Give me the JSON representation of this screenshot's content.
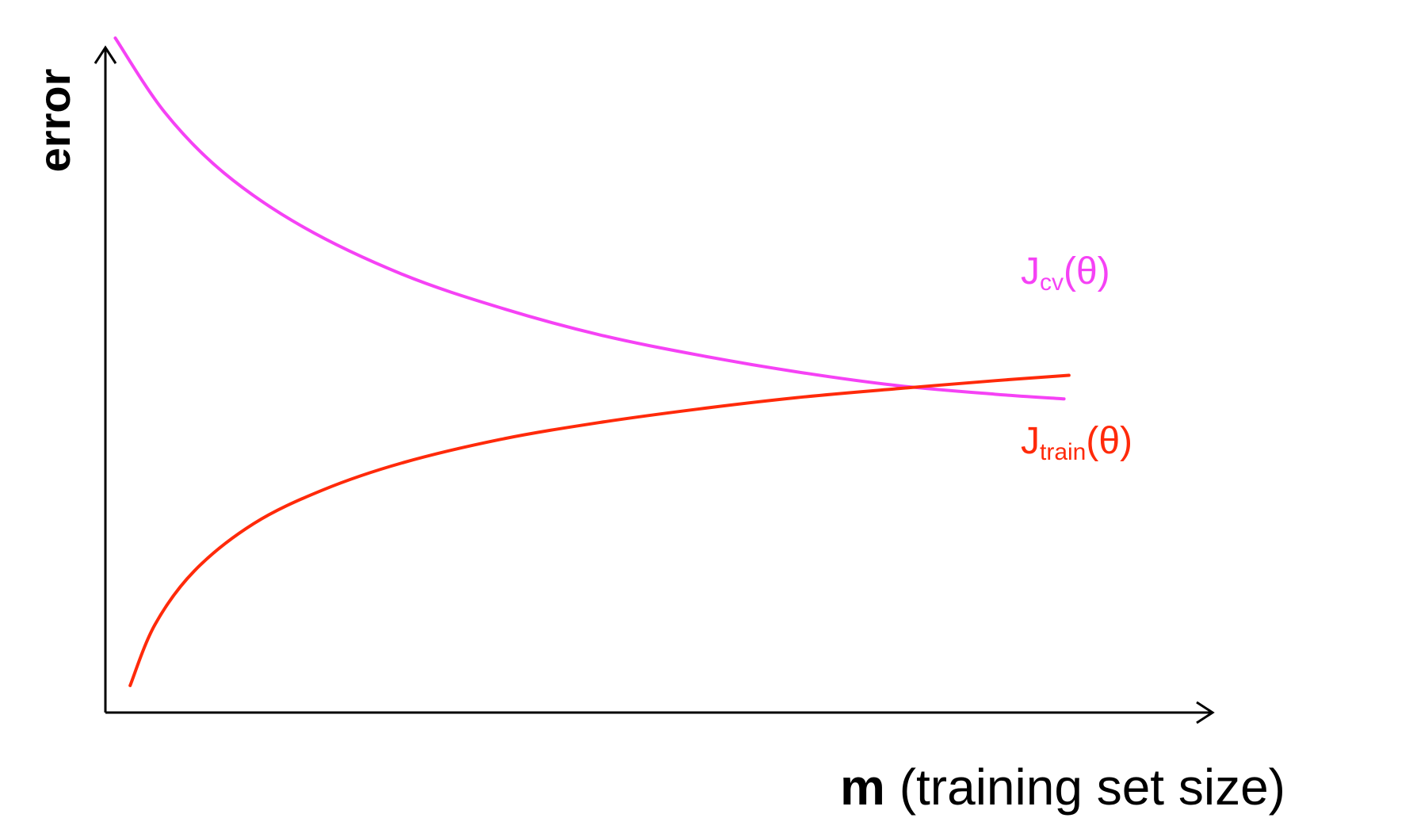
{
  "chart_data": {
    "type": "line",
    "title": "",
    "xlabel": {
      "bold": "m",
      "rest": " (training set size)"
    },
    "ylabel": "error",
    "xlim": [
      0,
      10
    ],
    "ylim": [
      0,
      10
    ],
    "grid": false,
    "ticks": false,
    "series": [
      {
        "name": "cv",
        "label": {
          "main": "J",
          "sub": "cv",
          "tail": "(θ)"
        },
        "color": "#f542f5",
        "x": [
          0.1,
          0.6,
          1.2,
          2.0,
          3.0,
          4.0,
          5.0,
          6.0,
          7.0,
          8.0,
          9.0,
          9.7
        ],
        "y": [
          10.0,
          8.9,
          8.0,
          7.2,
          6.5,
          6.0,
          5.6,
          5.3,
          5.05,
          4.85,
          4.72,
          4.65
        ]
      },
      {
        "name": "train",
        "label": {
          "main": "J",
          "sub": "train",
          "tail": "(θ)"
        },
        "color": "#ff2a0a",
        "x": [
          0.25,
          0.5,
          0.9,
          1.5,
          2.2,
          3.0,
          4.0,
          5.0,
          6.0,
          7.0,
          8.0,
          9.0,
          9.75
        ],
        "y": [
          0.4,
          1.3,
          2.1,
          2.8,
          3.3,
          3.7,
          4.05,
          4.3,
          4.5,
          4.67,
          4.8,
          4.92,
          5.0
        ]
      }
    ]
  },
  "colors": {
    "axis": "#000000",
    "background": "#ffffff"
  }
}
